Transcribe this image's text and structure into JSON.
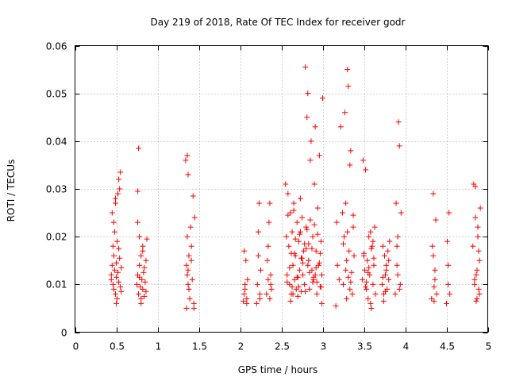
{
  "colors": {
    "series": "#ff0000",
    "grid": "#a0a0a0",
    "axis": "#000000"
  },
  "chart_data": {
    "type": "scatter",
    "title": "Day 219 of 2018, Rate Of TEC Index for receiver godr",
    "xlabel": "GPS time / hours",
    "ylabel": "ROTI / TECUs",
    "xlim": [
      0,
      5
    ],
    "ylim": [
      0,
      0.06
    ],
    "grid": true,
    "marker": "plus",
    "xticks": [
      0,
      0.5,
      1,
      1.5,
      2,
      2.5,
      3,
      3.5,
      4,
      4.5,
      5
    ],
    "xtick_labels": [
      "0",
      "0.5",
      "1",
      "1.5",
      "2",
      "2.5",
      "3",
      "3.5",
      "4",
      "4.5",
      "5"
    ],
    "yticks": [
      0,
      0.01,
      0.02,
      0.03,
      0.04,
      0.05,
      0.06
    ],
    "ytick_labels": [
      "0",
      "0.01",
      "0.02",
      "0.03",
      "0.04",
      "0.05",
      "0.06"
    ],
    "series": [
      {
        "name": "ROTI",
        "x": [
          0.44,
          0.45,
          0.45,
          0.46,
          0.46,
          0.47,
          0.47,
          0.48,
          0.48,
          0.49,
          0.49,
          0.5,
          0.5,
          0.51,
          0.51,
          0.52,
          0.52,
          0.53,
          0.53,
          0.54,
          0.54,
          0.55,
          0.55,
          0.56,
          0.44,
          0.47,
          0.5,
          0.53,
          0.56,
          0.49,
          0.75,
          0.76,
          0.76,
          0.77,
          0.77,
          0.78,
          0.78,
          0.79,
          0.8,
          0.8,
          0.81,
          0.82,
          0.82,
          0.83,
          0.84,
          0.85,
          0.86,
          0.86,
          0.87,
          0.76,
          0.8,
          0.84,
          0.78,
          0.82,
          1.34,
          1.35,
          1.35,
          1.36,
          1.36,
          1.37,
          1.37,
          1.38,
          1.38,
          1.39,
          1.4,
          1.41,
          1.42,
          1.43,
          1.44,
          1.45,
          1.37,
          1.41,
          1.44,
          1.36,
          2.04,
          2.05,
          2.06,
          2.07,
          2.08,
          2.09,
          2.06,
          2.08,
          2.05,
          2.2,
          2.21,
          2.22,
          2.23,
          2.24,
          2.25,
          2.22,
          2.24,
          2.32,
          2.33,
          2.34,
          2.35,
          2.36,
          2.37,
          2.38,
          2.34,
          2.36,
          2.37,
          2.55,
          2.56,
          2.57,
          2.58,
          2.59,
          2.6,
          2.61,
          2.62,
          2.63,
          2.64,
          2.65,
          2.66,
          2.67,
          2.68,
          2.69,
          2.7,
          2.71,
          2.72,
          2.73,
          2.74,
          2.75,
          2.76,
          2.77,
          2.78,
          2.79,
          2.8,
          2.81,
          2.82,
          2.83,
          2.84,
          2.85,
          2.86,
          2.87,
          2.88,
          2.89,
          2.9,
          2.91,
          2.92,
          2.93,
          2.94,
          2.95,
          2.96,
          2.97,
          2.98,
          2.99,
          3.0,
          2.57,
          2.6,
          2.63,
          2.66,
          2.69,
          2.72,
          2.75,
          2.78,
          2.81,
          2.84,
          2.87,
          2.9,
          2.93,
          2.96,
          2.99,
          2.58,
          2.62,
          2.67,
          2.71,
          2.76,
          2.8,
          2.85,
          2.89,
          2.94,
          2.98,
          2.61,
          2.65,
          2.7,
          2.74,
          2.79,
          2.83,
          2.88,
          2.92,
          2.97,
          2.64,
          2.73,
          2.82,
          2.91,
          3.16,
          3.17,
          3.18,
          3.2,
          3.22,
          3.24,
          3.25,
          3.26,
          3.27,
          3.28,
          3.29,
          3.3,
          3.31,
          3.32,
          3.33,
          3.34,
          3.35,
          3.36,
          3.37,
          3.38,
          3.25,
          3.28,
          3.31,
          3.34,
          3.37,
          3.29,
          3.33,
          3.3,
          3.48,
          3.49,
          3.5,
          3.51,
          3.52,
          3.53,
          3.54,
          3.55,
          3.56,
          3.57,
          3.58,
          3.59,
          3.6,
          3.61,
          3.62,
          3.63,
          3.64,
          3.5,
          3.53,
          3.56,
          3.59,
          3.62,
          3.52,
          3.55,
          3.58,
          3.61,
          3.72,
          3.73,
          3.74,
          3.75,
          3.76,
          3.77,
          3.78,
          3.79,
          3.8,
          3.81,
          3.74,
          3.77,
          3.8,
          3.73,
          3.76,
          3.88,
          3.89,
          3.9,
          3.91,
          3.92,
          3.93,
          3.94,
          3.95,
          3.9,
          3.93,
          3.91,
          4.32,
          4.33,
          4.34,
          4.35,
          4.36,
          4.37,
          4.38,
          4.34,
          4.36,
          4.35,
          4.5,
          4.51,
          4.52,
          4.53,
          4.54,
          4.52,
          4.82,
          4.83,
          4.84,
          4.85,
          4.86,
          4.87,
          4.88,
          4.89,
          4.9,
          4.91,
          4.84,
          4.87,
          4.9,
          4.85,
          4.88,
          4.86,
          4.89
        ],
        "y": [
          0.012,
          0.014,
          0.025,
          0.01,
          0.018,
          0.016,
          0.009,
          0.021,
          0.013,
          0.008,
          0.027,
          0.0115,
          0.0145,
          0.019,
          0.007,
          0.029,
          0.0125,
          0.032,
          0.0105,
          0.0155,
          0.03,
          0.0095,
          0.0335,
          0.0135,
          0.011,
          0.023,
          0.006,
          0.0175,
          0.0085,
          0.028,
          0.01,
          0.012,
          0.0295,
          0.008,
          0.0385,
          0.014,
          0.02,
          0.0095,
          0.007,
          0.016,
          0.011,
          0.018,
          0.009,
          0.0125,
          0.0075,
          0.0105,
          0.015,
          0.0085,
          0.0195,
          0.023,
          0.006,
          0.0135,
          0.0115,
          0.017,
          0.036,
          0.005,
          0.014,
          0.037,
          0.012,
          0.033,
          0.01,
          0.016,
          0.009,
          0.007,
          0.022,
          0.018,
          0.011,
          0.0285,
          0.006,
          0.024,
          0.013,
          0.015,
          0.005,
          0.02,
          0.0065,
          0.017,
          0.009,
          0.015,
          0.007,
          0.011,
          0.01,
          0.006,
          0.008,
          0.006,
          0.01,
          0.021,
          0.027,
          0.008,
          0.013,
          0.016,
          0.007,
          0.008,
          0.015,
          0.011,
          0.023,
          0.027,
          0.01,
          0.009,
          0.018,
          0.007,
          0.012,
          0.031,
          0.02,
          0.012,
          0.029,
          0.018,
          0.01,
          0.025,
          0.008,
          0.021,
          0.014,
          0.027,
          0.011,
          0.016,
          0.009,
          0.023,
          0.0075,
          0.019,
          0.013,
          0.028,
          0.0085,
          0.024,
          0.012,
          0.017,
          0.01,
          0.0555,
          0.022,
          0.045,
          0.05,
          0.015,
          0.009,
          0.036,
          0.04,
          0.013,
          0.02,
          0.011,
          0.031,
          0.043,
          0.017,
          0.008,
          0.026,
          0.014,
          0.037,
          0.0095,
          0.019,
          0.012,
          0.049,
          0.0105,
          0.0135,
          0.0095,
          0.0165,
          0.0115,
          0.0205,
          0.0155,
          0.0185,
          0.0215,
          0.0125,
          0.0175,
          0.0225,
          0.0105,
          0.0145,
          0.006,
          0.0245,
          0.0165,
          0.0195,
          0.0095,
          0.0145,
          0.0175,
          0.0235,
          0.0115,
          0.0205,
          0.0095,
          0.0065,
          0.0255,
          0.0115,
          0.0155,
          0.0085,
          0.0185,
          0.0105,
          0.0135,
          0.0165,
          0.008,
          0.021,
          0.014,
          0.012,
          0.0055,
          0.023,
          0.014,
          0.011,
          0.043,
          0.025,
          0.01,
          0.02,
          0.046,
          0.013,
          0.015,
          0.055,
          0.0515,
          0.017,
          0.009,
          0.038,
          0.0125,
          0.008,
          0.0245,
          0.016,
          0.0185,
          0.027,
          0.0115,
          0.0105,
          0.022,
          0.007,
          0.035,
          0.021,
          0.011,
          0.036,
          0.016,
          0.013,
          0.034,
          0.009,
          0.015,
          0.007,
          0.02,
          0.012,
          0.021,
          0.005,
          0.018,
          0.01,
          0.014,
          0.022,
          0.008,
          0.0165,
          0.0105,
          0.0135,
          0.0175,
          0.0155,
          0.0095,
          0.0125,
          0.006,
          0.019,
          0.01,
          0.018,
          0.008,
          0.016,
          0.012,
          0.014,
          0.009,
          0.017,
          0.011,
          0.019,
          0.0065,
          0.013,
          0.015,
          0.0115,
          0.0085,
          0.008,
          0.027,
          0.018,
          0.012,
          0.044,
          0.039,
          0.01,
          0.025,
          0.014,
          0.009,
          0.02,
          0.007,
          0.018,
          0.029,
          0.0095,
          0.013,
          0.0235,
          0.008,
          0.016,
          0.011,
          0.0065,
          0.006,
          0.019,
          0.01,
          0.025,
          0.008,
          0.014,
          0.018,
          0.031,
          0.01,
          0.024,
          0.012,
          0.007,
          0.02,
          0.009,
          0.015,
          0.026,
          0.011,
          0.013,
          0.008,
          0.0305,
          0.022,
          0.0065,
          0.017
        ]
      }
    ]
  }
}
